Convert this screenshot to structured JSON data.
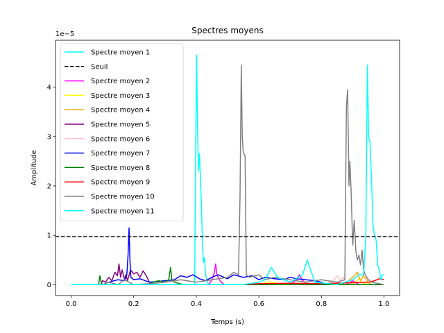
{
  "chart_data": {
    "type": "line",
    "title": "Spectres moyens",
    "xlabel": "Temps (s)",
    "ylabel": "Amplitude",
    "offset_text": "1e−5",
    "xlim": [
      -0.05,
      1.05
    ],
    "ylim": [
      -0.22,
      4.95
    ],
    "x_ticks": [
      0.0,
      0.2,
      0.4,
      0.6,
      0.8,
      1.0
    ],
    "x_tick_labels": [
      "0.0",
      "0.2",
      "0.4",
      "0.6",
      "0.8",
      "1.0"
    ],
    "y_ticks": [
      0,
      1,
      2,
      3,
      4
    ],
    "y_tick_labels": [
      "0",
      "1",
      "2",
      "3",
      "4"
    ],
    "legend_position": "upper-left",
    "threshold": {
      "name": "Seuil",
      "value": 0.97,
      "color": "#000000",
      "style": "dashed"
    },
    "legend": [
      {
        "label": "Spectre moyen 1",
        "color": "#00ffff",
        "style": "solid"
      },
      {
        "label": "Seuil",
        "color": "#000000",
        "style": "dashed"
      },
      {
        "label": "Spectre moyen 2",
        "color": "#ff00ff",
        "style": "solid"
      },
      {
        "label": "Spectre moyen 3",
        "color": "#ffff00",
        "style": "solid"
      },
      {
        "label": "Spectre moyen 4",
        "color": "#ffa500",
        "style": "solid"
      },
      {
        "label": "Spectre moyen 5",
        "color": "#800080",
        "style": "solid"
      },
      {
        "label": "Spectre moyen 6",
        "color": "#ffc0cb",
        "style": "solid"
      },
      {
        "label": "Spectre moyen 7",
        "color": "#0000ff",
        "style": "solid"
      },
      {
        "label": "Spectre moyen 8",
        "color": "#008000",
        "style": "solid"
      },
      {
        "label": "Spectre moyen 9",
        "color": "#ff0000",
        "style": "solid"
      },
      {
        "label": "Spectre moyen 10",
        "color": "#808080",
        "style": "solid"
      },
      {
        "label": "Spectre moyen 11",
        "color": "#00ffff",
        "style": "solid"
      }
    ],
    "series": [
      {
        "name": "Spectre moyen 1",
        "color": "#00ffff",
        "points": [
          [
            0.0,
            0.0
          ],
          [
            0.395,
            0.0
          ],
          [
            0.397,
            2.0
          ],
          [
            0.401,
            4.65
          ],
          [
            0.404,
            3.2
          ],
          [
            0.407,
            2.3
          ],
          [
            0.41,
            2.65
          ],
          [
            0.413,
            2.2
          ],
          [
            0.417,
            1.5
          ],
          [
            0.42,
            0.8
          ],
          [
            0.423,
            0.45
          ],
          [
            0.426,
            0.55
          ],
          [
            0.43,
            0.2
          ],
          [
            0.436,
            0.05
          ],
          [
            0.44,
            0.0
          ],
          [
            1.0,
            0.0
          ]
        ]
      },
      {
        "name": "Spectre moyen 2",
        "color": "#ff00ff",
        "points": [
          [
            0.0,
            0.0
          ],
          [
            0.44,
            0.0
          ],
          [
            0.45,
            0.1
          ],
          [
            0.458,
            0.25
          ],
          [
            0.462,
            0.42
          ],
          [
            0.466,
            0.2
          ],
          [
            0.472,
            0.12
          ],
          [
            0.48,
            0.05
          ],
          [
            0.49,
            0.0
          ],
          [
            0.7,
            0.0
          ],
          [
            0.72,
            0.1
          ],
          [
            0.73,
            0.2
          ],
          [
            0.74,
            0.08
          ],
          [
            0.76,
            0.0
          ],
          [
            0.88,
            0.0
          ],
          [
            0.9,
            0.08
          ],
          [
            0.92,
            0.0
          ],
          [
            1.0,
            0.0
          ]
        ]
      },
      {
        "name": "Spectre moyen 3",
        "color": "#ffff00",
        "points": [
          [
            0.0,
            0.0
          ],
          [
            0.6,
            0.0
          ],
          [
            0.63,
            0.06
          ],
          [
            0.66,
            0.03
          ],
          [
            0.7,
            0.0
          ],
          [
            0.9,
            0.0
          ],
          [
            0.92,
            0.12
          ],
          [
            0.93,
            0.05
          ],
          [
            0.95,
            0.0
          ],
          [
            1.0,
            0.0
          ]
        ]
      },
      {
        "name": "Spectre moyen 4",
        "color": "#ffa500",
        "points": [
          [
            0.0,
            0.0
          ],
          [
            0.86,
            0.0
          ],
          [
            0.88,
            0.05
          ],
          [
            0.9,
            0.15
          ],
          [
            0.915,
            0.25
          ],
          [
            0.925,
            0.08
          ],
          [
            0.935,
            0.18
          ],
          [
            0.95,
            0.05
          ],
          [
            0.96,
            0.0
          ],
          [
            1.0,
            0.0
          ]
        ]
      },
      {
        "name": "Spectre moyen 5",
        "color": "#800080",
        "points": [
          [
            0.0,
            0.0
          ],
          [
            0.095,
            0.0
          ],
          [
            0.1,
            0.08
          ],
          [
            0.11,
            0.05
          ],
          [
            0.12,
            0.15
          ],
          [
            0.13,
            0.08
          ],
          [
            0.14,
            0.25
          ],
          [
            0.148,
            0.18
          ],
          [
            0.153,
            0.42
          ],
          [
            0.158,
            0.15
          ],
          [
            0.163,
            0.3
          ],
          [
            0.17,
            0.12
          ],
          [
            0.175,
            0.2
          ],
          [
            0.18,
            0.08
          ],
          [
            0.19,
            0.3
          ],
          [
            0.2,
            0.22
          ],
          [
            0.21,
            0.25
          ],
          [
            0.22,
            0.15
          ],
          [
            0.23,
            0.28
          ],
          [
            0.24,
            0.18
          ],
          [
            0.25,
            0.05
          ],
          [
            0.26,
            0.0
          ],
          [
            1.0,
            0.0
          ]
        ]
      },
      {
        "name": "Spectre moyen 6",
        "color": "#ffc0cb",
        "points": [
          [
            0.0,
            0.0
          ],
          [
            0.82,
            0.0
          ],
          [
            0.84,
            0.1
          ],
          [
            0.85,
            0.18
          ],
          [
            0.86,
            0.08
          ],
          [
            0.87,
            0.15
          ],
          [
            0.88,
            0.05
          ],
          [
            0.9,
            0.0
          ],
          [
            1.0,
            0.0
          ]
        ]
      },
      {
        "name": "Spectre moyen 7",
        "color": "#0000ff",
        "points": [
          [
            0.0,
            0.0
          ],
          [
            0.1,
            0.0
          ],
          [
            0.12,
            0.05
          ],
          [
            0.15,
            0.1
          ],
          [
            0.17,
            0.08
          ],
          [
            0.178,
            0.2
          ],
          [
            0.182,
            0.6
          ],
          [
            0.185,
            1.15
          ],
          [
            0.188,
            0.5
          ],
          [
            0.191,
            0.15
          ],
          [
            0.2,
            0.1
          ],
          [
            0.22,
            0.12
          ],
          [
            0.25,
            0.05
          ],
          [
            0.3,
            0.08
          ],
          [
            0.33,
            0.1
          ],
          [
            0.35,
            0.18
          ],
          [
            0.37,
            0.15
          ],
          [
            0.39,
            0.2
          ],
          [
            0.41,
            0.12
          ],
          [
            0.43,
            0.08
          ],
          [
            0.45,
            0.15
          ],
          [
            0.47,
            0.2
          ],
          [
            0.5,
            0.12
          ],
          [
            0.52,
            0.2
          ],
          [
            0.55,
            0.15
          ],
          [
            0.58,
            0.18
          ],
          [
            0.6,
            0.1
          ],
          [
            0.62,
            0.15
          ],
          [
            0.65,
            0.12
          ],
          [
            0.68,
            0.1
          ],
          [
            0.7,
            0.15
          ],
          [
            0.72,
            0.12
          ],
          [
            0.75,
            0.1
          ],
          [
            0.78,
            0.08
          ],
          [
            0.8,
            0.05
          ],
          [
            0.82,
            0.0
          ],
          [
            1.0,
            0.0
          ]
        ]
      },
      {
        "name": "Spectre moyen 8",
        "color": "#008000",
        "points": [
          [
            0.0,
            0.0
          ],
          [
            0.088,
            0.0
          ],
          [
            0.092,
            0.18
          ],
          [
            0.096,
            0.05
          ],
          [
            0.1,
            0.0
          ],
          [
            0.25,
            0.0
          ],
          [
            0.26,
            0.05
          ],
          [
            0.28,
            0.08
          ],
          [
            0.3,
            0.05
          ],
          [
            0.312,
            0.1
          ],
          [
            0.318,
            0.35
          ],
          [
            0.322,
            0.1
          ],
          [
            0.33,
            0.05
          ],
          [
            0.36,
            0.0
          ],
          [
            1.0,
            0.0
          ]
        ]
      },
      {
        "name": "Spectre moyen 9",
        "color": "#ff0000",
        "points": [
          [
            0.0,
            0.0
          ],
          [
            0.55,
            0.0
          ],
          [
            0.6,
            0.02
          ],
          [
            0.7,
            0.03
          ],
          [
            0.8,
            0.02
          ],
          [
            0.9,
            0.04
          ],
          [
            0.95,
            0.05
          ],
          [
            0.97,
            0.08
          ],
          [
            0.985,
            0.12
          ],
          [
            1.0,
            0.1
          ]
        ]
      },
      {
        "name": "Spectre moyen 10",
        "color": "#808080",
        "points": [
          [
            0.0,
            0.0
          ],
          [
            0.1,
            0.0
          ],
          [
            0.12,
            0.05
          ],
          [
            0.15,
            0.0
          ],
          [
            0.17,
            0.1
          ],
          [
            0.2,
            0.0
          ],
          [
            0.25,
            0.02
          ],
          [
            0.3,
            0.05
          ],
          [
            0.35,
            0.1
          ],
          [
            0.4,
            0.05
          ],
          [
            0.45,
            0.1
          ],
          [
            0.5,
            0.15
          ],
          [
            0.52,
            0.25
          ],
          [
            0.535,
            0.2
          ],
          [
            0.54,
            1.8
          ],
          [
            0.544,
            4.45
          ],
          [
            0.547,
            3.0
          ],
          [
            0.55,
            2.7
          ],
          [
            0.553,
            2.65
          ],
          [
            0.556,
            2.6
          ],
          [
            0.56,
            0.2
          ],
          [
            0.57,
            0.15
          ],
          [
            0.6,
            0.2
          ],
          [
            0.62,
            0.1
          ],
          [
            0.65,
            0.15
          ],
          [
            0.7,
            0.1
          ],
          [
            0.75,
            0.05
          ],
          [
            0.8,
            0.1
          ],
          [
            0.85,
            0.05
          ],
          [
            0.875,
            0.1
          ],
          [
            0.88,
            3.6
          ],
          [
            0.884,
            3.95
          ],
          [
            0.888,
            2.0
          ],
          [
            0.891,
            2.5
          ],
          [
            0.895,
            1.9
          ],
          [
            0.9,
            0.8
          ],
          [
            0.905,
            1.3
          ],
          [
            0.91,
            0.7
          ],
          [
            0.915,
            0.5
          ],
          [
            0.92,
            0.6
          ],
          [
            0.925,
            0.4
          ],
          [
            0.93,
            0.7
          ],
          [
            0.935,
            0.3
          ],
          [
            0.94,
            0.2
          ],
          [
            0.95,
            0.1
          ],
          [
            0.96,
            0.05
          ],
          [
            1.0,
            0.0
          ]
        ]
      },
      {
        "name": "Spectre moyen 11",
        "color": "#00ffff",
        "points": [
          [
            0.0,
            0.0
          ],
          [
            0.55,
            0.0
          ],
          [
            0.6,
            0.05
          ],
          [
            0.62,
            0.1
          ],
          [
            0.64,
            0.35
          ],
          [
            0.66,
            0.15
          ],
          [
            0.7,
            0.05
          ],
          [
            0.74,
            0.2
          ],
          [
            0.755,
            0.5
          ],
          [
            0.765,
            0.3
          ],
          [
            0.78,
            0.05
          ],
          [
            0.85,
            0.0
          ],
          [
            0.9,
            0.1
          ],
          [
            0.92,
            0.2
          ],
          [
            0.935,
            0.2
          ],
          [
            0.942,
            1.0
          ],
          [
            0.947,
            4.45
          ],
          [
            0.951,
            3.0
          ],
          [
            0.955,
            2.9
          ],
          [
            0.96,
            2.2
          ],
          [
            0.965,
            1.2
          ],
          [
            0.97,
            1.0
          ],
          [
            0.975,
            0.9
          ],
          [
            0.98,
            0.4
          ],
          [
            0.985,
            0.3
          ],
          [
            0.99,
            0.1
          ],
          [
            0.995,
            0.2
          ],
          [
            1.0,
            0.2
          ]
        ]
      }
    ]
  }
}
